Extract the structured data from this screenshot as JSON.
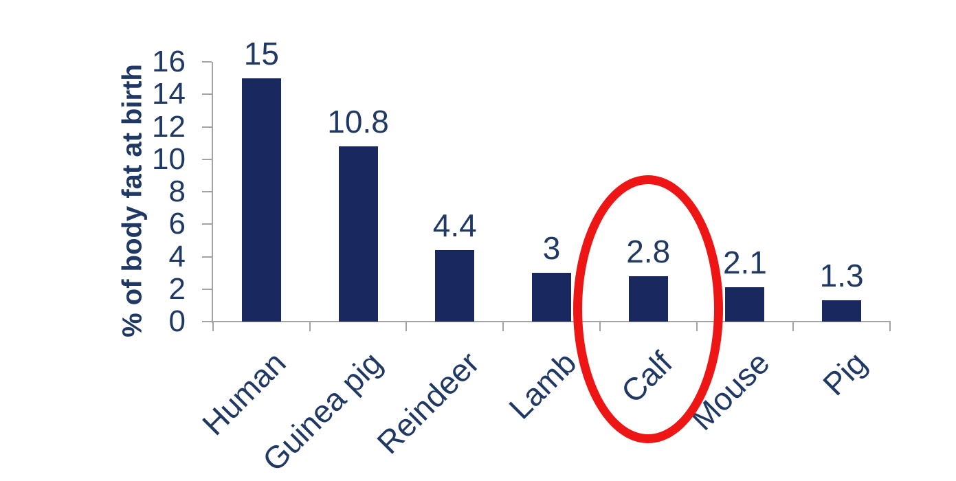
{
  "chart_data": {
    "type": "bar",
    "title": "",
    "ylabel": "% of body fat at birth",
    "xlabel": "",
    "categories": [
      "Human",
      "Guinea pig",
      "Reindeer",
      "Lamb",
      "Calf",
      "Mouse",
      "Pig"
    ],
    "values": [
      15,
      10.8,
      4.4,
      3,
      2.8,
      2.1,
      1.3
    ],
    "data_labels": [
      "15",
      "10.8",
      "4.4",
      "3",
      "2.8",
      "2.1",
      "1.3"
    ],
    "ylim": [
      0,
      16
    ],
    "yticks": [
      0,
      2,
      4,
      6,
      8,
      10,
      12,
      14,
      16
    ],
    "grid": false,
    "legend": false,
    "category_label_rotation_deg": 45,
    "colors": {
      "bar": "#19295f",
      "text": "#1f3864",
      "axis": "#a3a3a3",
      "background": "#ffffff",
      "annotation": "#ee1515"
    },
    "annotation": {
      "type": "ellipse",
      "target_category": "Calf",
      "color": "#ee1515"
    }
  }
}
